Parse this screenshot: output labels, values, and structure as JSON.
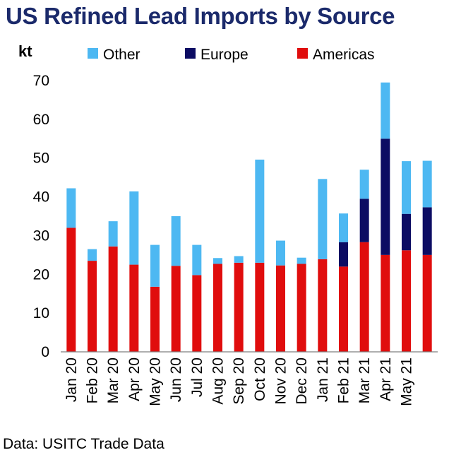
{
  "chart_data": {
    "type": "bar",
    "stacked": true,
    "title": "US Refined Lead Imports by Source",
    "ylabel": "kt",
    "xlabel": "",
    "ylim": [
      0,
      70
    ],
    "yticks": [
      0,
      10,
      20,
      30,
      40,
      50,
      60,
      70
    ],
    "grid": false,
    "legend_position": "top",
    "categories": [
      "Jan 20",
      "Feb 20",
      "Mar 20",
      "Apr 20",
      "May 20",
      "Jun 20",
      "Jul 20",
      "Aug 20",
      "Sep 20",
      "Oct 20",
      "Nov 20",
      "Dec 20",
      "Jan 21",
      "Feb 21",
      "Mar 21",
      "Apr 21",
      "May 21",
      ""
    ],
    "series": [
      {
        "name": "Americas",
        "color": "#e00d0d",
        "values": [
          32.0,
          23.5,
          27.2,
          22.5,
          16.8,
          22.2,
          19.8,
          22.7,
          23.0,
          23.0,
          22.3,
          22.7,
          23.9,
          22.0,
          28.3,
          25.0,
          26.2,
          25.0
        ]
      },
      {
        "name": "Europe",
        "color": "#0c0c63",
        "values": [
          0,
          0,
          0,
          0,
          0,
          0,
          0,
          0,
          0,
          0,
          0,
          0,
          0,
          6.3,
          11.2,
          30.0,
          9.4,
          12.3
        ]
      },
      {
        "name": "Other",
        "color": "#4db8f2",
        "values": [
          10.2,
          3.0,
          6.5,
          18.9,
          10.8,
          12.8,
          7.8,
          1.5,
          1.7,
          26.6,
          6.4,
          1.6,
          20.7,
          7.4,
          7.5,
          14.5,
          13.6,
          12.0
        ]
      }
    ],
    "legend_order": [
      "Other",
      "Europe",
      "Americas"
    ]
  },
  "source_note": "Data: USITC Trade Data"
}
